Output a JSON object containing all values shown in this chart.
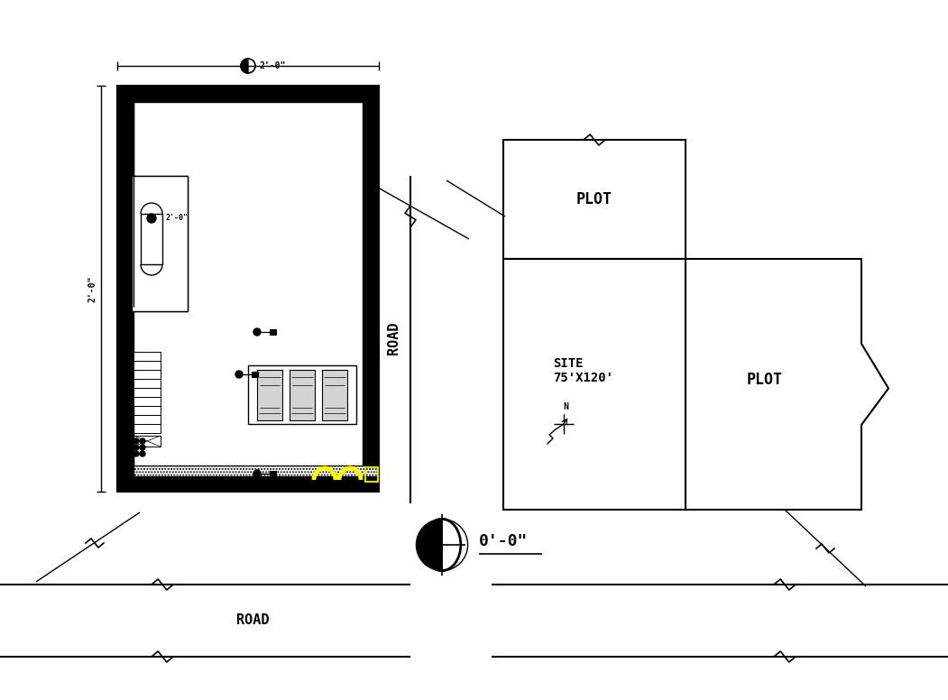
{
  "bg_color": "#ffffff",
  "line_color": "#000000",
  "site_label": "SITE\n75'X120'",
  "plot_label": "PLOT",
  "road_label_bottom": "ROAD",
  "road_label_vert": "ROAD",
  "dim_top": "2'-0\"",
  "dim_left": "2'-0\"",
  "north_label": "N",
  "zero_label": "0'-0\"",
  "lw_main": 1.5,
  "lw_thin": 0.8,
  "hatch_outer": "...",
  "hatch_bottom": "xxx"
}
